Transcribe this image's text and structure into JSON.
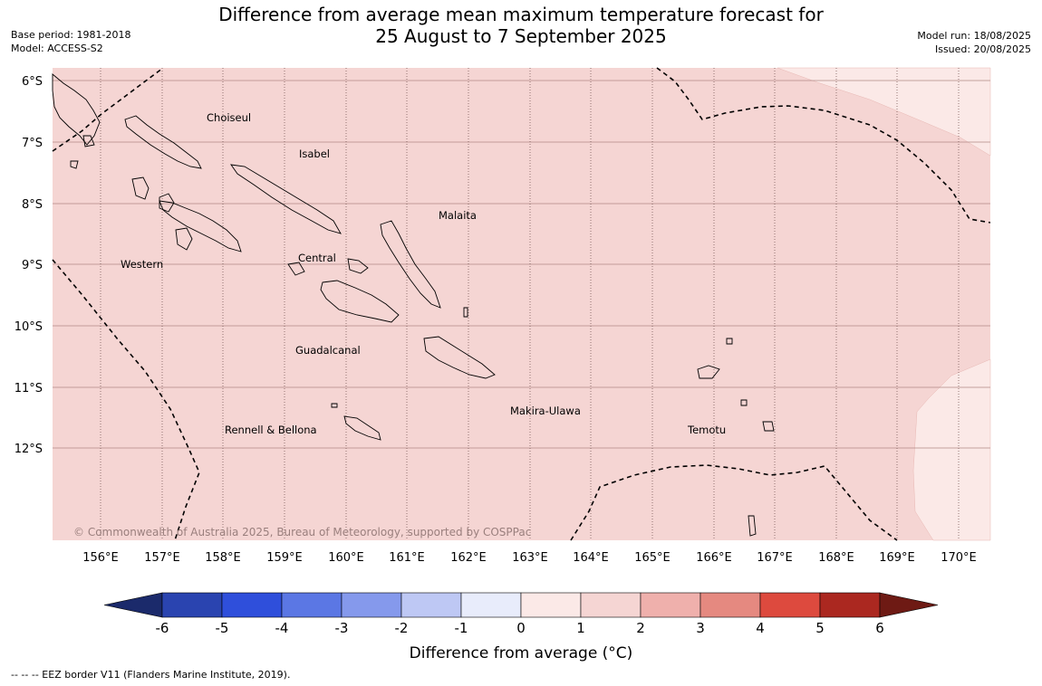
{
  "title": {
    "line1": "Difference from average mean maximum temperature forecast for",
    "line2": "25 August to 7 September 2025"
  },
  "meta_left": {
    "base_period": "Base period: 1981-2018",
    "model": "Model: ACCESS-S2"
  },
  "meta_right": {
    "model_run": "Model run: 18/08/2025",
    "issued": "Issued: 20/08/2025"
  },
  "map": {
    "lat_ticks": [
      "6°S",
      "7°S",
      "8°S",
      "9°S",
      "10°S",
      "11°S",
      "12°S"
    ],
    "lon_ticks": [
      "156°E",
      "157°E",
      "158°E",
      "159°E",
      "160°E",
      "161°E",
      "162°E",
      "163°E",
      "164°E",
      "165°E",
      "166°E",
      "167°E",
      "168°E",
      "169°E",
      "170°E"
    ],
    "provinces": [
      "Choiseul",
      "Isabel",
      "Malaita",
      "Western",
      "Central",
      "Guadalcanal",
      "Makira-Ulawa",
      "Rennell & Bellona",
      "Temotu"
    ],
    "copyright": "© Commonwealth of Australia 2025, Bureau of Meteorology, supported by COSPPac",
    "fill_colors": {
      "1_to_2": "#f5d5d3",
      "0_to_1": "#fbe9e7"
    }
  },
  "colorbar": {
    "title": "Difference from average (°C)",
    "tick_labels": [
      "-6",
      "-5",
      "-4",
      "-3",
      "-2",
      "-1",
      "0",
      "1",
      "2",
      "3",
      "4",
      "5",
      "6"
    ],
    "colors": [
      "#1b2a6b",
      "#2a44b0",
      "#2f4fdb",
      "#5b77e4",
      "#8599ec",
      "#bec8f4",
      "#e8ecfb",
      "#fbe9e7",
      "#f5d5d3",
      "#efb0ac",
      "#e58980",
      "#dd4a3e",
      "#ab2820",
      "#6e1a14"
    ]
  },
  "footnote": "--  --  -- EEZ border V11 (Flanders Marine Institute, 2019)."
}
